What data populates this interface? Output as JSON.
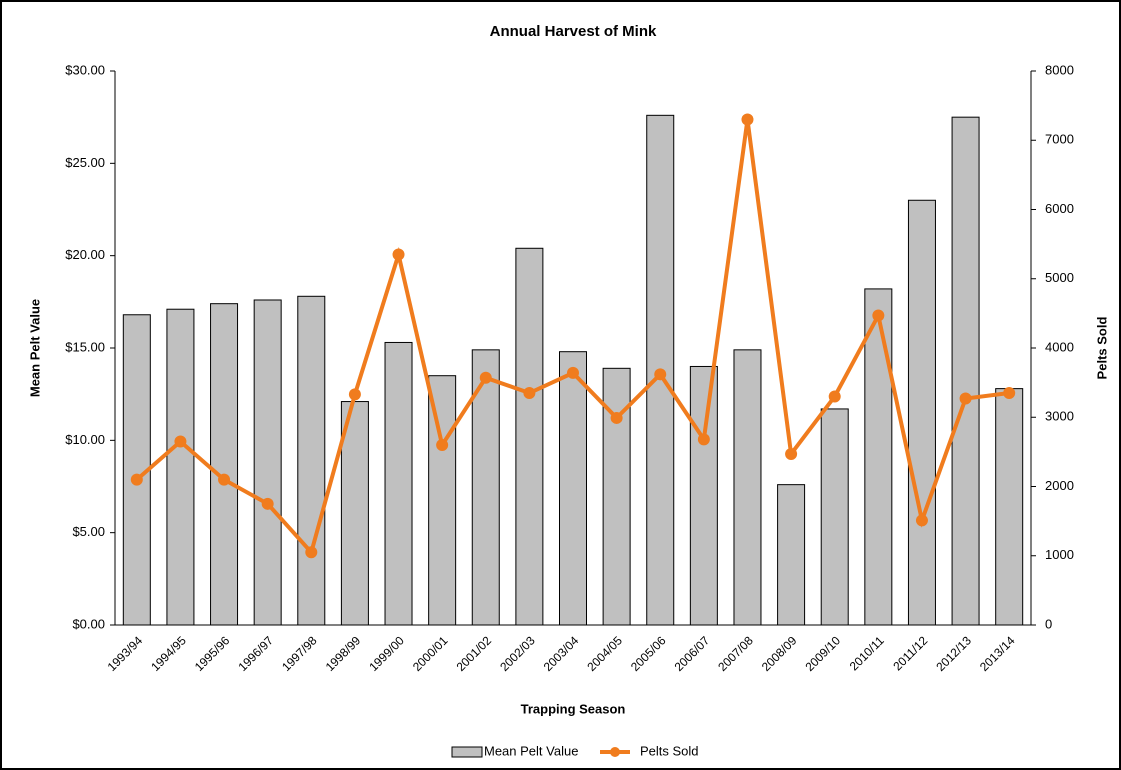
{
  "chart_data": {
    "type": "bar",
    "title": "Annual Harvest of Mink",
    "x_label": "Trapping Season",
    "y_label": "Mean Pelt Value",
    "y2_label": "Pelts Sold",
    "categories": [
      "1993/94",
      "1994/95",
      "1995/96",
      "1996/97",
      "1997/98",
      "1998/99",
      "1999/00",
      "2000/01",
      "2001/02",
      "2002/03",
      "2003/04",
      "2004/05",
      "2005/06",
      "2006/07",
      "2007/08",
      "2008/09",
      "2009/10",
      "2010/11",
      "2011/12",
      "2012/13",
      "2013/14"
    ],
    "series": [
      {
        "name": "Mean Pelt Value",
        "type": "bar",
        "color": "#c0c0c0",
        "values": [
          16.8,
          17.1,
          17.4,
          17.6,
          17.8,
          12.1,
          15.3,
          13.5,
          14.9,
          20.4,
          14.8,
          13.9,
          27.6,
          14.0,
          14.9,
          7.6,
          11.7,
          18.2,
          23.0,
          27.5,
          12.8
        ]
      },
      {
        "name": "Pelts Sold",
        "type": "line",
        "axis": "y2",
        "color": "#f07c1e",
        "values": [
          2100,
          2650,
          2100,
          1750,
          1050,
          3330,
          5350,
          2600,
          3570,
          3350,
          3640,
          2990,
          3620,
          2680,
          7300,
          2470,
          3300,
          4470,
          1510,
          3270,
          3350
        ]
      }
    ],
    "ylim": [
      0,
      30
    ],
    "yticks": [
      {
        "value": 0,
        "label": "$0.00"
      },
      {
        "value": 5,
        "label": "$5.00"
      },
      {
        "value": 10,
        "label": "$10.00"
      },
      {
        "value": 15,
        "label": "$15.00"
      },
      {
        "value": 20,
        "label": "$20.00"
      },
      {
        "value": 25,
        "label": "$25.00"
      },
      {
        "value": 30,
        "label": "$30.00"
      }
    ],
    "y2lim": [
      0,
      8000
    ],
    "y2ticks": [
      0,
      1000,
      2000,
      3000,
      4000,
      5000,
      6000,
      7000,
      8000
    ],
    "legend": "bottom"
  }
}
